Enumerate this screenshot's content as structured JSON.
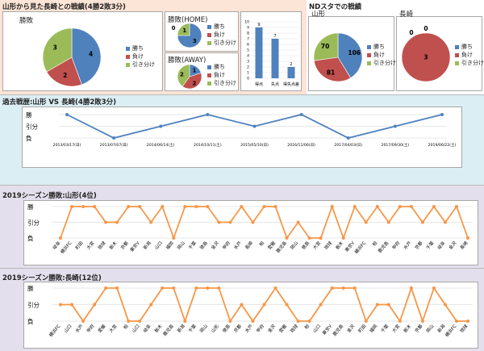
{
  "colors": {
    "win": "#4f81bd",
    "lose": "#c0504d",
    "draw": "#9bbb59",
    "line_blue": "#4f81bd",
    "line_orange": "#f79646"
  },
  "sections": {
    "top_left_title": "山形から見た長崎との戦績(4勝2敗3分)",
    "top_right_title": "NDスタでの戦績",
    "history_title": "過去戦歴:山形 VS 長崎(4勝2敗3分)",
    "season_yamagata_title": "2019シーズン勝敗:山形(4位)",
    "season_nagasaki_title": "2019シーズン勝敗:長崎(12位)"
  },
  "legend": {
    "win": "勝ち",
    "lose": "負け",
    "draw": "引き分け"
  },
  "result_axis": {
    "win": "勝",
    "draw": "引分",
    "lose": "負"
  },
  "chart_data": [
    {
      "type": "pie",
      "title": "勝敗",
      "labels": [
        "勝ち",
        "負け",
        "引き分け"
      ],
      "values": [
        4,
        2,
        3
      ]
    },
    {
      "type": "pie",
      "title": "勝敗(HOME)",
      "labels": [
        "勝ち",
        "負け",
        "引き分け"
      ],
      "values": [
        3,
        0,
        1
      ]
    },
    {
      "type": "pie",
      "title": "勝敗(AWAY)",
      "labels": [
        "勝ち",
        "負け",
        "引き分け"
      ],
      "values": [
        1,
        2,
        2
      ]
    },
    {
      "type": "bar",
      "categories": [
        "得点",
        "失点",
        "得失点差"
      ],
      "values": [
        9,
        7,
        2
      ],
      "ylim": [
        0,
        10
      ]
    },
    {
      "type": "pie",
      "title": "山形",
      "labels": [
        "勝ち",
        "負け",
        "引き分け"
      ],
      "values": [
        106,
        81,
        70
      ]
    },
    {
      "type": "pie",
      "title": "長崎",
      "labels": [
        "勝ち",
        "負け",
        "引き分け"
      ],
      "values": [
        0,
        3,
        0
      ]
    },
    {
      "type": "line",
      "title": "過去戦歴:山形 VS 長崎(4勝2敗3分)",
      "x": [
        "2013/03/17(日)",
        "2013/07/07(日)",
        "2014/06/14(土)",
        "2014/10/11(土)",
        "2015/05/10(日)",
        "2016/11/06(日)",
        "2017/04/03(日)",
        "2017/09/30(土)",
        "2019/06/22(土)"
      ],
      "values": [
        2,
        0,
        1,
        2,
        1,
        2,
        0,
        1,
        2
      ],
      "ylim": [
        0,
        2
      ]
    },
    {
      "type": "line",
      "title": "2019シーズン勝敗:山形(4位)",
      "x": [
        "岐阜",
        "横浜FC",
        "町田",
        "大宮",
        "琉球",
        "栃木",
        "京都",
        "東京V",
        "新潟",
        "山口",
        "福岡",
        "岡山",
        "千葉",
        "徳島",
        "金沢",
        "甲府",
        "水戸",
        "長崎",
        "柏",
        "愛媛",
        "鹿児島",
        "岡山",
        "徳島",
        "大宮",
        "琉球",
        "栃木",
        "東京V",
        "横浜FC",
        "柏",
        "鹿児島",
        "甲府",
        "水戸",
        "京都",
        "千葉",
        "岐阜",
        "金沢",
        "長崎"
      ],
      "values": [
        0,
        2,
        2,
        2,
        1,
        1,
        2,
        2,
        1,
        2,
        0,
        2,
        2,
        2,
        1,
        1,
        2,
        1,
        2,
        2,
        0,
        1,
        0,
        0,
        2,
        0,
        2,
        1,
        2,
        1,
        2,
        2,
        1,
        2,
        1,
        2,
        0
      ],
      "ylim": [
        0,
        2
      ]
    },
    {
      "type": "line",
      "title": "2019シーズン勝敗:長崎(12位)",
      "x": [
        "横浜FC",
        "山口",
        "水戸",
        "甲府",
        "愛媛",
        "大宮",
        "柏",
        "山口",
        "岐阜",
        "栃木",
        "鹿児島",
        "新潟",
        "千葉",
        "岡山",
        "山形",
        "徳島",
        "京都",
        "水戸",
        "甲府",
        "金沢",
        "愛媛",
        "琉球",
        "柏",
        "山口",
        "東京V",
        "鹿児島",
        "金沢",
        "町田",
        "福岡",
        "千葉",
        "大宮",
        "栃木",
        "京都",
        "岡山",
        "新潟",
        "横浜FC",
        "琉球"
      ],
      "values": [
        1,
        1,
        0,
        1,
        2,
        2,
        0,
        0,
        1,
        2,
        2,
        0,
        2,
        2,
        2,
        0,
        1,
        0,
        1,
        2,
        1,
        0,
        0,
        1,
        2,
        2,
        2,
        0,
        1,
        1,
        0,
        2,
        0,
        2,
        1,
        0,
        0
      ],
      "ylim": [
        0,
        2
      ]
    }
  ]
}
